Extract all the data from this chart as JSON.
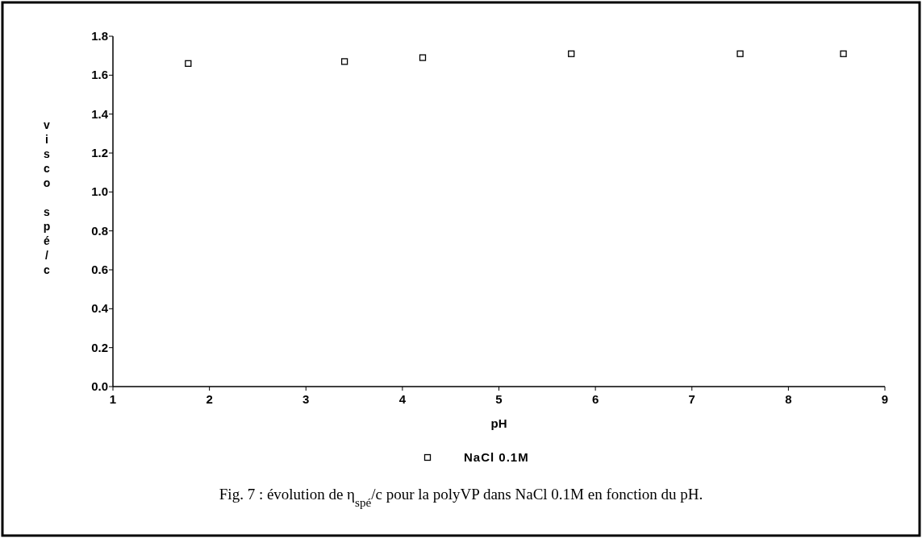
{
  "chart_data": {
    "type": "scatter",
    "xlabel": "pH",
    "ylabel": "visco spé/c",
    "x": [
      1.78,
      3.4,
      4.21,
      5.75,
      7.5,
      8.57
    ],
    "series": [
      {
        "name": "NaCl 0.1M",
        "color": "#000000",
        "values": [
          1.66,
          1.67,
          1.69,
          1.71,
          1.71,
          1.71
        ]
      }
    ],
    "xlim": [
      1,
      9
    ],
    "xticks": [
      1,
      2,
      3,
      4,
      5,
      6,
      7,
      8,
      9
    ],
    "ylim": [
      0,
      1.8
    ],
    "yticks": [
      {
        "value": 0,
        "label": "0.0"
      },
      {
        "value": 0.2,
        "label": "0.2"
      },
      {
        "value": 0.4,
        "label": "0.4"
      },
      {
        "value": 0.6,
        "label": "0.6"
      },
      {
        "value": 0.8,
        "label": "0.8"
      },
      {
        "value": 1,
        "label": "1.0"
      },
      {
        "value": 1.2,
        "label": "1.2"
      },
      {
        "value": 1.4,
        "label": "1.4"
      },
      {
        "value": 1.6,
        "label": "1.6"
      },
      {
        "value": 1.8,
        "label": "1.8"
      }
    ],
    "marker": "square",
    "grid": false,
    "legend": "bottom",
    "annotations": [
      "Fig. 7 : évolution de η$_{spé}$/c pour la polyVP dans NaCl 0.1M en fonction du pH."
    ]
  }
}
